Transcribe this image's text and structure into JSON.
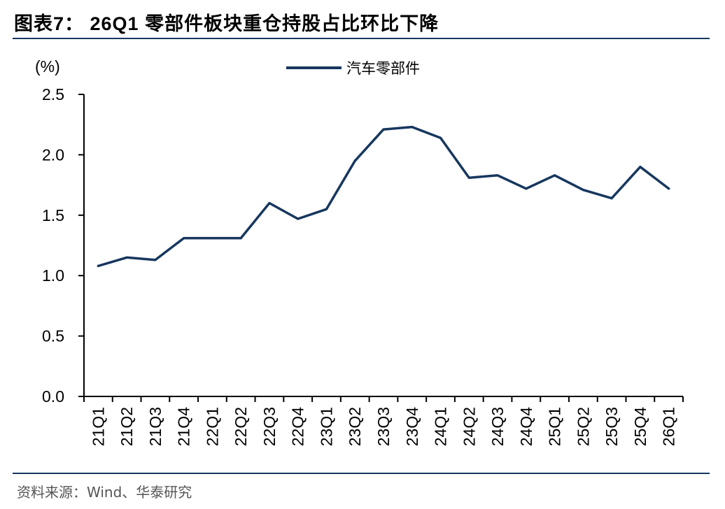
{
  "title": "图表7： 26Q1 零部件板块重仓持股占比环比下降",
  "source": "资料来源：Wind、华泰研究",
  "chart_data": {
    "type": "line",
    "title": "图表7： 26Q1 零部件板块重仓持股占比环比下降",
    "ylabel": "(%)",
    "xlabel": "",
    "ylim": [
      0,
      2.5
    ],
    "yticks": [
      "0.0",
      "0.5",
      "1.0",
      "1.5",
      "2.0",
      "2.5"
    ],
    "grid": false,
    "legend_position": "top-center",
    "categories": [
      "21Q1",
      "21Q2",
      "21Q3",
      "21Q4",
      "22Q1",
      "22Q2",
      "22Q3",
      "22Q4",
      "23Q1",
      "23Q2",
      "23Q3",
      "23Q4",
      "24Q1",
      "24Q2",
      "24Q3",
      "24Q4",
      "25Q1",
      "25Q2",
      "25Q3",
      "25Q4",
      "26Q1"
    ],
    "series": [
      {
        "name": "汽车零部件",
        "color": "#17375e",
        "values": [
          1.08,
          1.15,
          1.13,
          1.31,
          1.31,
          1.31,
          1.6,
          1.47,
          1.55,
          1.95,
          2.21,
          2.23,
          2.14,
          1.81,
          1.83,
          1.72,
          1.83,
          1.71,
          1.64,
          1.9,
          1.72
        ]
      }
    ]
  }
}
